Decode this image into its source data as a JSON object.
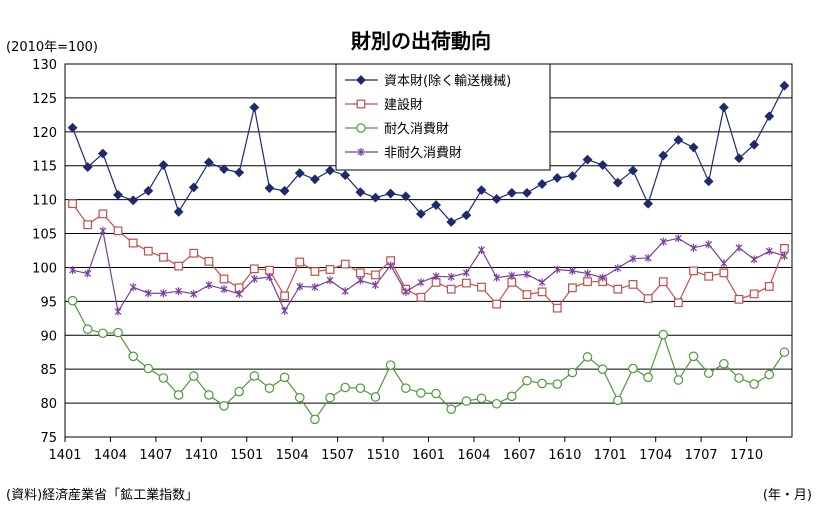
{
  "chart_data": {
    "type": "line",
    "title": "財別の出荷動向",
    "unit": "(2010年=100)",
    "xlabel_note": "(年・月)",
    "source": "(資料)経済産業省「鉱工業指数」",
    "ylim": [
      75,
      130
    ],
    "yticks": [
      75,
      80,
      85,
      90,
      95,
      100,
      105,
      110,
      115,
      120,
      125,
      130
    ],
    "grid": "horizontal",
    "legend_placement": "top-center",
    "x_tick_labels": [
      "1401",
      "1404",
      "1407",
      "1410",
      "1501",
      "1504",
      "1507",
      "1510",
      "1601",
      "1604",
      "1607",
      "1610",
      "1701",
      "1704",
      "1707",
      "1710"
    ],
    "x_tick_every": 3,
    "x": [
      "1401",
      "1402",
      "1403",
      "1404",
      "1405",
      "1406",
      "1407",
      "1408",
      "1409",
      "1410",
      "1411",
      "1412",
      "1501",
      "1502",
      "1503",
      "1504",
      "1505",
      "1506",
      "1507",
      "1508",
      "1509",
      "1510",
      "1511",
      "1512",
      "1601",
      "1602",
      "1603",
      "1604",
      "1605",
      "1606",
      "1607",
      "1608",
      "1609",
      "1610",
      "1611",
      "1612",
      "1701",
      "1702",
      "1703",
      "1704",
      "1705",
      "1706",
      "1707",
      "1708",
      "1709",
      "1710",
      "1711",
      "1712"
    ],
    "series": [
      {
        "name": "資本財(除く輸送機械)",
        "color": "#1f2a6e",
        "marker": "diamond",
        "values": [
          120.6,
          114.8,
          116.8,
          110.7,
          109.9,
          111.3,
          115.1,
          108.2,
          111.8,
          115.5,
          114.5,
          114.0,
          123.6,
          111.7,
          111.3,
          113.9,
          113.0,
          114.3,
          113.6,
          111.1,
          110.3,
          110.9,
          110.5,
          107.9,
          109.2,
          106.7,
          107.7,
          111.4,
          110.1,
          111.0,
          111.0,
          112.3,
          113.2,
          113.5,
          115.9,
          115.1,
          112.5,
          114.3,
          109.4,
          116.5,
          118.8,
          117.7,
          112.7,
          123.6,
          116.1,
          118.1,
          122.3,
          126.8
        ]
      },
      {
        "name": "建設財",
        "color": "#c0504d",
        "marker": "square",
        "values": [
          109.4,
          106.3,
          107.9,
          105.4,
          103.6,
          102.4,
          101.5,
          100.2,
          102.1,
          100.9,
          98.3,
          97.0,
          99.8,
          99.6,
          95.8,
          100.8,
          99.4,
          99.7,
          100.5,
          99.2,
          98.9,
          101.0,
          96.8,
          95.6,
          97.8,
          96.8,
          97.7,
          97.1,
          94.6,
          97.8,
          96.0,
          96.4,
          94.0,
          97.0,
          97.9,
          97.9,
          96.8,
          97.5,
          95.4,
          97.9,
          94.8,
          99.5,
          98.7,
          99.2,
          95.3,
          96.1,
          97.2,
          102.8
        ]
      },
      {
        "name": "耐久消費財",
        "color": "#4e9a3a",
        "marker": "circle",
        "values": [
          95.1,
          90.9,
          90.3,
          90.4,
          86.9,
          85.1,
          83.7,
          81.2,
          84.0,
          81.2,
          79.6,
          81.7,
          84.0,
          82.2,
          83.8,
          80.8,
          77.6,
          80.8,
          82.3,
          82.2,
          80.9,
          85.6,
          82.2,
          81.5,
          81.4,
          79.1,
          80.3,
          80.7,
          79.9,
          81.0,
          83.3,
          82.9,
          82.8,
          84.5,
          86.8,
          85.0,
          80.4,
          85.1,
          83.8,
          90.1,
          83.4,
          86.9,
          84.4,
          85.8,
          83.7,
          82.8,
          84.2,
          87.5
        ]
      },
      {
        "name": "非耐久消費財",
        "color": "#7b3f9e",
        "marker": "asterisk",
        "values": [
          99.6,
          99.1,
          105.4,
          93.5,
          97.1,
          96.2,
          96.2,
          96.5,
          96.1,
          97.4,
          96.8,
          96.1,
          98.3,
          98.6,
          93.6,
          97.2,
          97.1,
          98.1,
          96.5,
          98.1,
          97.4,
          100.3,
          96.4,
          97.8,
          98.7,
          98.6,
          99.2,
          102.6,
          98.5,
          98.8,
          99.0,
          97.8,
          99.7,
          99.5,
          99.1,
          98.5,
          99.9,
          101.3,
          101.4,
          103.8,
          104.3,
          102.9,
          103.4,
          100.6,
          102.9,
          101.2,
          102.4,
          101.7
        ]
      }
    ]
  }
}
